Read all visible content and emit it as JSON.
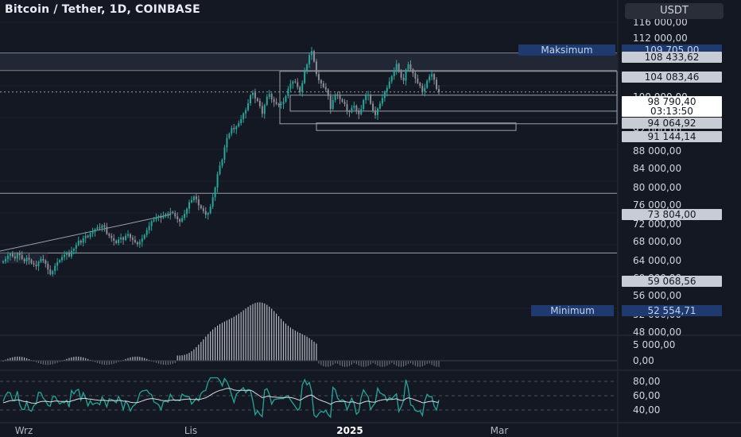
{
  "header": {
    "title": "Bitcoin / Tether, 1D, COINBASE",
    "currency": "USDT"
  },
  "colors": {
    "background": "#141823",
    "up": "#26a69a",
    "down": "#8a8d96",
    "grid": "#1f2430",
    "level_line": "#9aa0ab",
    "label_blue": "#1e3a6e",
    "label_gray": "#c8ccd4"
  },
  "chart_data": {
    "type": "candlestick",
    "title": "Bitcoin / Tether, 1D, COINBASE",
    "price_axis": {
      "ticks": [
        "116 000,00",
        "112 000,00",
        "108 433,62",
        "104 083,46",
        "100 000,00",
        "96 000,00",
        "92 000,00",
        "88 000,00",
        "84 000,00",
        "80 000,00",
        "76 000,00",
        "72 000,00",
        "68 000,00",
        "64 000,00",
        "60 000,00",
        "56 000,00",
        "52 000,00",
        "48 000,00"
      ],
      "range": [
        46500,
        117000
      ]
    },
    "time_axis": {
      "labels": [
        "Wrz",
        "Lis",
        "2025",
        "Mar"
      ]
    },
    "key_levels": [
      {
        "label": "Maksimum",
        "value": "109 705,00"
      },
      {
        "label": "",
        "value": "108 433,62"
      },
      {
        "label": "",
        "value": "104 083,46"
      },
      {
        "label": "",
        "value": "98 790,40"
      },
      {
        "label": "",
        "value": "03:13:50"
      },
      {
        "label": "",
        "value": "94 064,92"
      },
      {
        "label": "",
        "value": "91 144,14"
      },
      {
        "label": "",
        "value": "73 804,00"
      },
      {
        "label": "",
        "value": "59 068,56"
      },
      {
        "label": "Minimum",
        "value": "52 554,71"
      }
    ],
    "macd": {
      "axis_ticks": [
        "5 000,00",
        "0,00"
      ]
    },
    "rsi": {
      "axis_ticks": [
        "80,00",
        "60,00",
        "40,00"
      ]
    },
    "closes": [
      57000,
      57600,
      58400,
      58900,
      58200,
      57700,
      59000,
      58500,
      57600,
      57000,
      57900,
      57400,
      56500,
      56200,
      55800,
      56900,
      57600,
      57200,
      56400,
      55000,
      53800,
      54600,
      55900,
      56800,
      57300,
      58100,
      58600,
      59200,
      58200,
      59600,
      60100,
      61000,
      62100,
      61600,
      62700,
      63300,
      63000,
      63900,
      64300,
      64900,
      65400,
      65200,
      65900,
      65500,
      63800,
      63300,
      62700,
      62100,
      61500,
      62400,
      62900,
      62300,
      63300,
      63700,
      62800,
      62300,
      61700,
      61200,
      61800,
      62600,
      63500,
      64700,
      65700,
      66900,
      67300,
      67800,
      68200,
      67700,
      68300,
      68700,
      68500,
      69200,
      68900,
      68100,
      67400,
      66800,
      67700,
      68700,
      70000,
      71600,
      72100,
      73000,
      72300,
      70800,
      70100,
      69400,
      68500,
      68900,
      70500,
      72800,
      75200,
      78500,
      80600,
      82100,
      85100,
      87400,
      88500,
      89900,
      89600,
      90300,
      91100,
      92100,
      93500,
      94300,
      96000,
      98000,
      98600,
      97200,
      96600,
      95300,
      93400,
      95600,
      97600,
      98300,
      97000,
      96300,
      95800,
      95600,
      95800,
      96400,
      97800,
      99600,
      100800,
      101400,
      101200,
      100000,
      98800,
      101000,
      103800,
      105600,
      107900,
      108900,
      106300,
      103200,
      101700,
      100900,
      100000,
      99400,
      97800,
      94600,
      96800,
      98200,
      97900,
      97000,
      96400,
      95800,
      94100,
      93800,
      94900,
      95400,
      94200,
      93300,
      94600,
      96800,
      97900,
      98100,
      95900,
      94200,
      93100,
      94700,
      95900,
      97300,
      98900,
      99800,
      101400,
      102700,
      104200,
      105700,
      103800,
      102300,
      101600,
      104300,
      105600,
      104400,
      103400,
      102100,
      101000,
      100300,
      98900,
      99800,
      101600,
      102600,
      103200,
      101800,
      99500,
      98790
    ]
  }
}
